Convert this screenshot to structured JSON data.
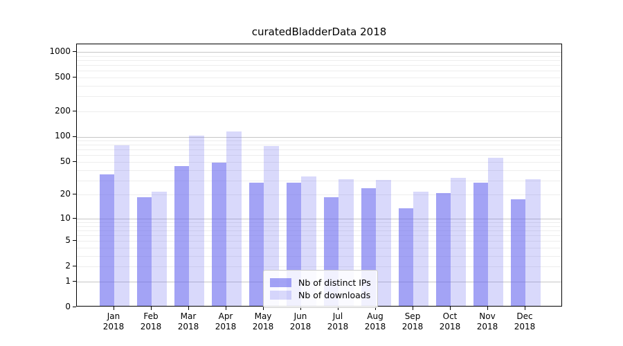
{
  "title": "curatedBladderData 2018",
  "chart_data": {
    "type": "bar",
    "title": "curatedBladderData 2018",
    "x_months": [
      "Jan",
      "Feb",
      "Mar",
      "Apr",
      "May",
      "Jun",
      "Jul",
      "Aug",
      "Sep",
      "Oct",
      "Nov",
      "Dec"
    ],
    "x_year": "2018",
    "series": [
      {
        "name": "Nb of distinct IPs",
        "color": "rgba(102,102,238,0.6)",
        "values": [
          34,
          18,
          43,
          47,
          27,
          27,
          18,
          23,
          13,
          20,
          27,
          17
        ]
      },
      {
        "name": "Nb of downloads",
        "color": "rgba(102,102,238,0.25)",
        "values": [
          76,
          21,
          100,
          111,
          74,
          32,
          30,
          29,
          21,
          31,
          54,
          30
        ]
      }
    ],
    "y_scale": "log1p",
    "y_ticks_labeled": [
      0,
      1,
      2,
      5,
      10,
      20,
      50,
      100,
      200,
      500,
      1000
    ],
    "y_grid_major": [
      1,
      10,
      100,
      1000
    ],
    "y_grid_minor": [
      2,
      3,
      4,
      5,
      6,
      7,
      8,
      9,
      20,
      30,
      40,
      50,
      60,
      70,
      80,
      90,
      200,
      300,
      400,
      500,
      600,
      700,
      800,
      900
    ],
    "ylim": [
      0,
      1227
    ],
    "grid": true,
    "legend_position": "lower center"
  },
  "colors": {
    "bar_ips": "rgba(102,102,238,0.6)",
    "bar_downloads": "rgba(102,102,238,0.25)",
    "grid_major": "#c6c6c6",
    "grid_minor": "#ededed",
    "spine": "#000000",
    "background": "#ffffff"
  }
}
